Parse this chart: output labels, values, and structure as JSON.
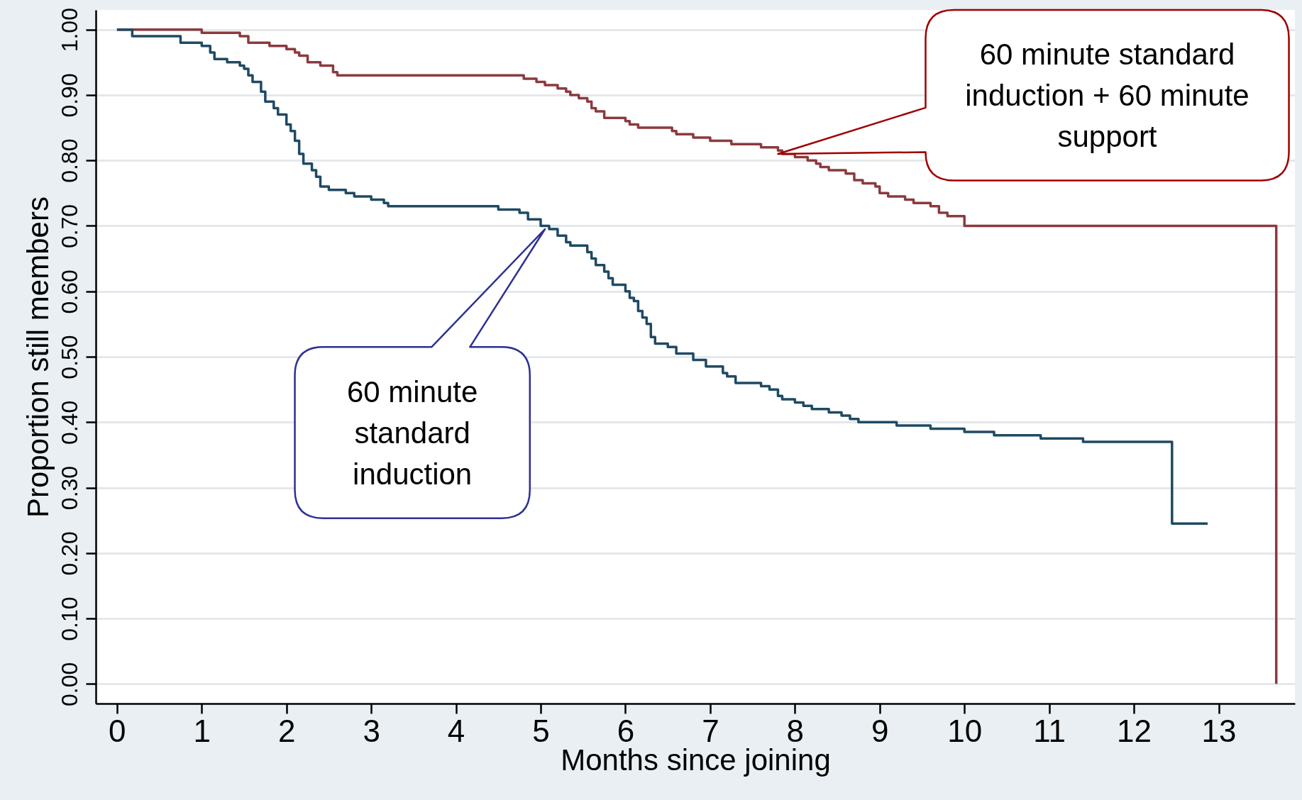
{
  "chart_data": {
    "type": "step",
    "xlabel": "Months since joining",
    "ylabel": "Proportion still members",
    "xlim": [
      -0.25,
      13.9
    ],
    "ylim": [
      -0.03,
      1.03
    ],
    "xticks": [
      0,
      1,
      2,
      3,
      4,
      5,
      6,
      7,
      8,
      9,
      10,
      11,
      12,
      13
    ],
    "yticks": [
      {
        "value": 0,
        "label": "0.00"
      },
      {
        "value": 0.1,
        "label": "0.10"
      },
      {
        "value": 0.2,
        "label": "0.20"
      },
      {
        "value": 0.3,
        "label": "0.30"
      },
      {
        "value": 0.4,
        "label": "0.40"
      },
      {
        "value": 0.5,
        "label": "0.50"
      },
      {
        "value": 0.6,
        "label": "0.60"
      },
      {
        "value": 0.7,
        "label": "0.70"
      },
      {
        "value": 0.8,
        "label": "0.80"
      },
      {
        "value": 0.9,
        "label": "0.90"
      },
      {
        "value": 1,
        "label": "1.00"
      }
    ],
    "grid": "y",
    "legend": false,
    "series": [
      {
        "color": "#8b3a3e",
        "x": [
          0,
          1.0,
          1.45,
          1.55,
          1.8,
          2.0,
          2.1,
          2.15,
          2.25,
          2.4,
          2.55,
          2.6,
          4.8,
          4.95,
          5.05,
          5.2,
          5.3,
          5.35,
          5.45,
          5.55,
          5.6,
          5.65,
          5.75,
          6.0,
          6.05,
          6.15,
          6.55,
          6.6,
          6.8,
          7.0,
          7.25,
          7.6,
          7.8,
          7.85,
          8.0,
          8.15,
          8.25,
          8.3,
          8.4,
          8.6,
          8.7,
          8.8,
          8.95,
          9.0,
          9.1,
          9.3,
          9.4,
          9.6,
          9.7,
          9.8,
          10.0,
          13.68
        ],
        "values": [
          1.0,
          0.995,
          0.99,
          0.98,
          0.975,
          0.97,
          0.965,
          0.96,
          0.95,
          0.945,
          0.935,
          0.93,
          0.925,
          0.92,
          0.915,
          0.91,
          0.905,
          0.9,
          0.895,
          0.89,
          0.88,
          0.875,
          0.865,
          0.86,
          0.855,
          0.85,
          0.845,
          0.84,
          0.835,
          0.83,
          0.825,
          0.82,
          0.815,
          0.81,
          0.805,
          0.8,
          0.795,
          0.79,
          0.785,
          0.78,
          0.77,
          0.765,
          0.76,
          0.75,
          0.745,
          0.74,
          0.735,
          0.73,
          0.72,
          0.715,
          0.7,
          0
        ]
      },
      {
        "color": "#1f4a63",
        "x": [
          0,
          0.18,
          0.75,
          1.0,
          1.1,
          1.15,
          1.3,
          1.45,
          1.5,
          1.55,
          1.6,
          1.7,
          1.75,
          1.85,
          1.9,
          2.0,
          2.05,
          2.1,
          2.15,
          2.2,
          2.3,
          2.35,
          2.4,
          2.5,
          2.7,
          2.8,
          3.0,
          3.15,
          3.2,
          4.5,
          4.75,
          4.85,
          5.0,
          5.1,
          5.2,
          5.3,
          5.35,
          5.55,
          5.6,
          5.65,
          5.75,
          5.8,
          5.85,
          6.0,
          6.05,
          6.1,
          6.15,
          6.2,
          6.25,
          6.3,
          6.35,
          6.5,
          6.6,
          6.8,
          6.95,
          7.15,
          7.2,
          7.3,
          7.6,
          7.7,
          7.8,
          7.85,
          8.0,
          8.1,
          8.2,
          8.4,
          8.55,
          8.65,
          8.75,
          9.2,
          9.6,
          10.0,
          10.35,
          10.9,
          11.4,
          12.45,
          12.87
        ],
        "values": [
          1.0,
          0.99,
          0.98,
          0.975,
          0.965,
          0.955,
          0.95,
          0.945,
          0.94,
          0.93,
          0.92,
          0.905,
          0.89,
          0.88,
          0.87,
          0.855,
          0.845,
          0.83,
          0.81,
          0.795,
          0.785,
          0.775,
          0.76,
          0.755,
          0.75,
          0.745,
          0.74,
          0.735,
          0.73,
          0.725,
          0.72,
          0.71,
          0.7,
          0.695,
          0.685,
          0.675,
          0.67,
          0.66,
          0.65,
          0.64,
          0.63,
          0.62,
          0.61,
          0.6,
          0.59,
          0.585,
          0.57,
          0.56,
          0.55,
          0.53,
          0.52,
          0.515,
          0.505,
          0.495,
          0.485,
          0.475,
          0.47,
          0.46,
          0.455,
          0.45,
          0.44,
          0.435,
          0.43,
          0.425,
          0.42,
          0.415,
          0.41,
          0.405,
          0.4,
          0.395,
          0.39,
          0.385,
          0.38,
          0.375,
          0.37,
          0.245,
          0.245
        ]
      }
    ],
    "annotations": [
      "60 minute standard induction",
      "60 minute standard induction + 60 minute support"
    ]
  }
}
